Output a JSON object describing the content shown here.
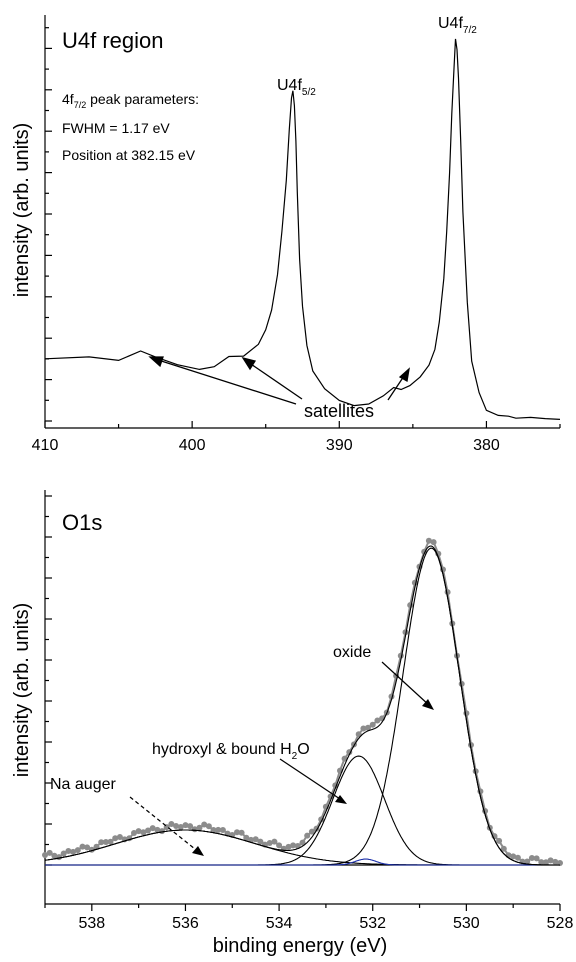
{
  "chart_data": [
    {
      "type": "line",
      "title": "U4f region",
      "xlabel": "",
      "ylabel": "intensity (arb. units)",
      "xlim": [
        410,
        375
      ],
      "x_ticks": [
        410,
        400,
        390,
        380
      ],
      "y_ticks_labeled": false,
      "grid": false,
      "series": [
        {
          "x": [
            410,
            407,
            405,
            403.5,
            402.5,
            401,
            399.5,
            398.5,
            397.5,
            396.5,
            395.5,
            395,
            394.6,
            394.2,
            393.9,
            393.6,
            393.4,
            393.25,
            393.15,
            393.05,
            392.95,
            392.85,
            392.7,
            392.5,
            392.2,
            391.8,
            391,
            390,
            389,
            388,
            387,
            386.3,
            385.8,
            385.2,
            384.5,
            383.9,
            383.5,
            383.2,
            382.9,
            382.7,
            382.5,
            382.35,
            382.2,
            382.1,
            382.0,
            381.9,
            381.75,
            381.6,
            381.3,
            381.0,
            380.5,
            380,
            379.2,
            378.5,
            378,
            377,
            376,
            375
          ],
          "y": [
            0.176,
            0.181,
            0.172,
            0.196,
            0.181,
            0.161,
            0.149,
            0.156,
            0.182,
            0.183,
            0.213,
            0.25,
            0.3,
            0.39,
            0.5,
            0.63,
            0.76,
            0.84,
            0.858,
            0.82,
            0.73,
            0.6,
            0.43,
            0.31,
            0.21,
            0.145,
            0.1,
            0.07,
            0.057,
            0.061,
            0.082,
            0.103,
            0.098,
            0.108,
            0.13,
            0.16,
            0.2,
            0.27,
            0.38,
            0.5,
            0.65,
            0.8,
            0.92,
            0.99,
            0.963,
            0.89,
            0.73,
            0.55,
            0.32,
            0.17,
            0.09,
            0.045,
            0.032,
            0.03,
            0.025,
            0.027,
            0.024,
            0.022
          ]
        }
      ],
      "annotations": [
        {
          "text": "U4f",
          "sub": "5/2",
          "x": 393.15,
          "y": 0.858
        },
        {
          "text": "U4f",
          "sub": "7/2",
          "x": 382.1,
          "y": 0.99
        },
        {
          "text": "satellites",
          "x": 387.5,
          "y": 0.03
        }
      ],
      "peak_parameters": {
        "title_main": "4f",
        "title_sub": "7/2",
        "title_rest": " peak parameters:",
        "fwhm": "FWHM = 1.17 eV",
        "position": "Position at 382.15 eV"
      }
    },
    {
      "type": "line",
      "title": "O1s",
      "xlabel": "binding energy (eV)",
      "ylabel": "intensity (arb. units)",
      "xlim": [
        539,
        528
      ],
      "x_ticks": [
        538,
        536,
        534,
        532,
        530,
        528
      ],
      "y_ticks_labeled": false,
      "grid": false,
      "series": [
        {
          "name": "data",
          "style": "points",
          "color": "#8c8c8c"
        },
        {
          "name": "Na auger",
          "style": "line",
          "color": "#000000"
        },
        {
          "name": "hydroxyl & bound H2O",
          "style": "line",
          "color": "#000000"
        },
        {
          "name": "oxide",
          "style": "line",
          "color": "#000000"
        },
        {
          "name": "minor",
          "style": "line",
          "color": "#1a2ea8"
        }
      ],
      "components": {
        "na_auger": {
          "center": 536.0,
          "amplitude": 0.106,
          "sigma": 1.5
        },
        "hydroxyl": {
          "center": 532.3,
          "amplitude": 0.33,
          "sigma": 0.55
        },
        "oxide": {
          "center": 530.75,
          "amplitude": 0.96,
          "sigma": 0.6
        },
        "minor": {
          "center": 532.15,
          "amplitude": 0.018,
          "sigma": 0.22
        }
      },
      "annotations": [
        {
          "text": "oxide",
          "x": 530.8,
          "y": 0.55
        },
        {
          "text": "hydroxyl & bound H",
          "sub": "2",
          "rest": "O",
          "x": 532.3,
          "y": 0.33
        },
        {
          "text": "Na auger",
          "x": 535.5,
          "y": 0.04
        }
      ]
    }
  ]
}
